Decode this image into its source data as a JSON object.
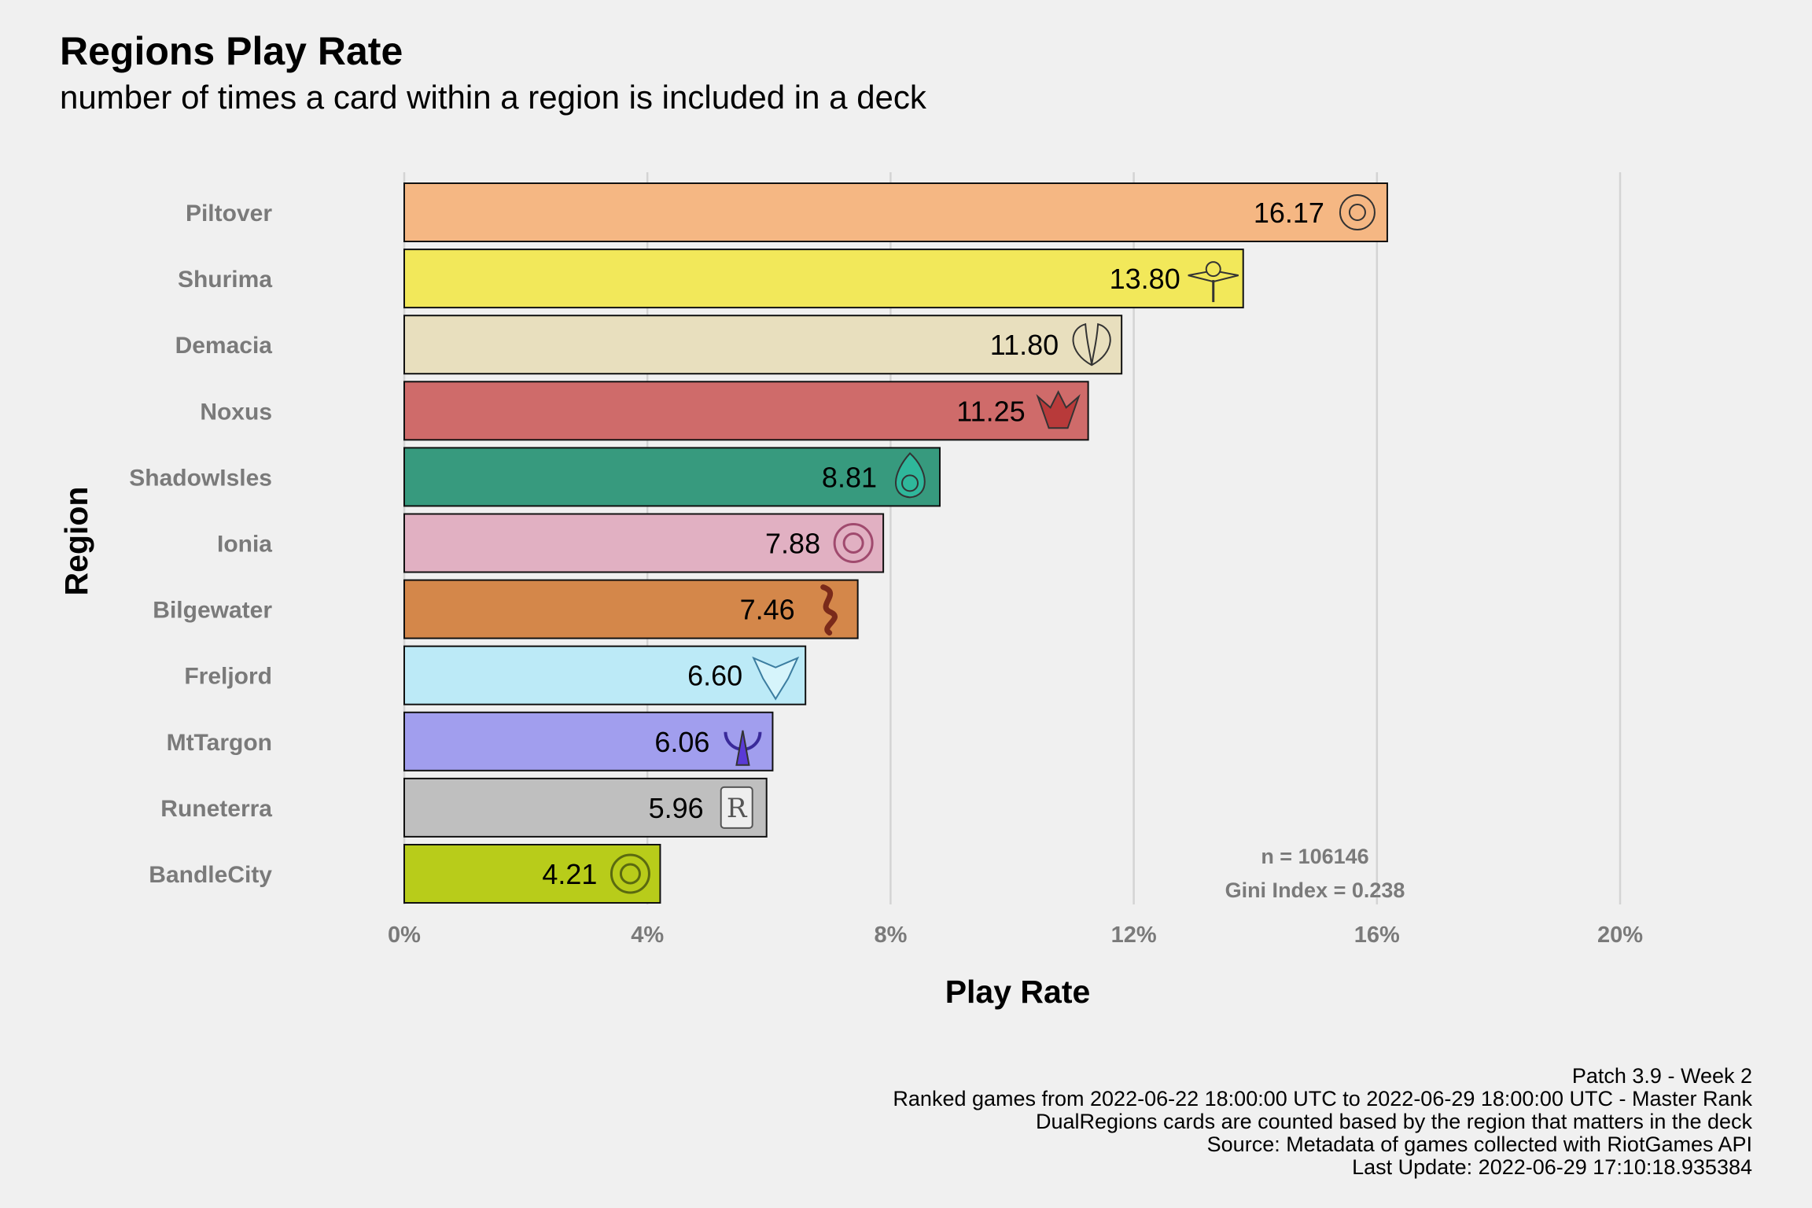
{
  "chart_data": {
    "type": "bar",
    "orientation": "horizontal",
    "title": "Regions Play Rate",
    "subtitle": "number of times a card within a region is included in a deck",
    "xlabel": "Play Rate",
    "ylabel": "Region",
    "xlim": [
      0,
      20
    ],
    "x_ticks": [
      "0%",
      "4%",
      "8%",
      "12%",
      "16%",
      "20%"
    ],
    "x_tick_values": [
      0,
      4,
      8,
      12,
      16,
      20
    ],
    "grid": true,
    "categories": [
      "Piltover",
      "Shurima",
      "Demacia",
      "Noxus",
      "ShadowIsles",
      "Ionia",
      "Bilgewater",
      "Freljord",
      "MtTargon",
      "Runeterra",
      "BandleCity"
    ],
    "values": [
      16.17,
      13.8,
      11.8,
      11.25,
      8.81,
      7.88,
      7.46,
      6.6,
      6.06,
      5.96,
      4.21
    ],
    "value_labels": [
      "16.17",
      "13.80",
      "11.80",
      "11.25",
      "8.81",
      "7.88",
      "7.46",
      "6.60",
      "6.06",
      "5.96",
      "4.21"
    ],
    "colors": [
      "#F5B783",
      "#F2E85A",
      "#E8DFBE",
      "#CF6B6A",
      "#379A7E",
      "#E1B0C2",
      "#D4874A",
      "#BCEAF7",
      "#A19EEE",
      "#BFBFBF",
      "#B8CC1A"
    ],
    "icons": [
      "piltover-icon",
      "shurima-icon",
      "demacia-icon",
      "noxus-icon",
      "shadowisles-icon",
      "ionia-icon",
      "bilgewater-icon",
      "freljord-icon",
      "mttargon-icon",
      "runeterra-icon",
      "bandlecity-icon"
    ],
    "annotations": [
      "n = 106146",
      "Gini Index = 0.238"
    ]
  },
  "caption": [
    "Patch 3.9 - Week 2",
    "Ranked games from 2022-06-22 18:00:00 UTC to 2022-06-29 18:00:00 UTC - Master Rank",
    "DualRegions cards are counted based by the region that matters in the deck",
    "Source: Metadata of games collected with RiotGames API",
    "Last Update: 2022-06-29 17:10:18.935384"
  ]
}
